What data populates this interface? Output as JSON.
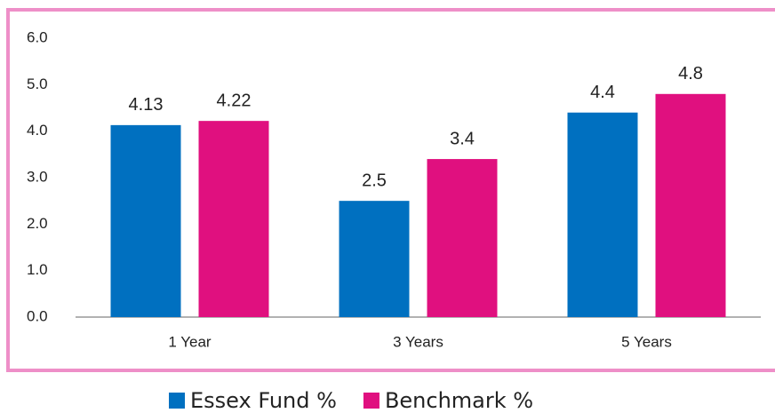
{
  "chart_data": {
    "type": "bar",
    "categories": [
      "1 Year",
      "3 Years",
      "5 Years"
    ],
    "series": [
      {
        "name": "Essex Fund %",
        "color": "#0070c0",
        "values": [
          4.13,
          2.5,
          4.4
        ]
      },
      {
        "name": "Benchmark %",
        "color": "#e0107f",
        "values": [
          4.22,
          3.4,
          4.8
        ]
      }
    ],
    "ylim": [
      0,
      6
    ],
    "yticks": [
      {
        "value": 0,
        "label": "0.0"
      },
      {
        "value": 1,
        "label": "1.0"
      },
      {
        "value": 2,
        "label": "2.0"
      },
      {
        "value": 3,
        "label": "3.0"
      },
      {
        "value": 4,
        "label": "4.0"
      },
      {
        "value": 5,
        "label": "5.0"
      },
      {
        "value": 6,
        "label": "6.0"
      }
    ],
    "grid": false,
    "legend": "bottom"
  }
}
